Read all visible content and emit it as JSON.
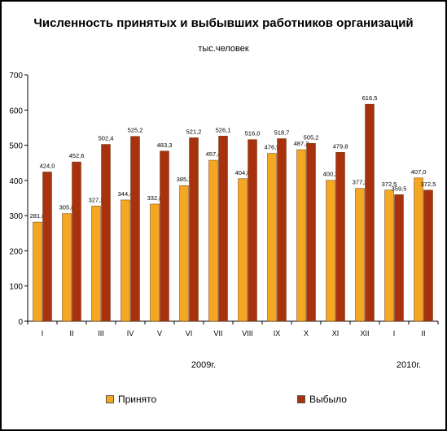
{
  "chart_data": {
    "type": "bar",
    "title": "Численность принятых и выбывших работников организаций",
    "subtitle": "тыс.человек",
    "categories": [
      "I",
      "II",
      "III",
      "IV",
      "V",
      "VI",
      "VII",
      "VIII",
      "IX",
      "X",
      "XI",
      "XII",
      "I",
      "II"
    ],
    "groups": [
      {
        "label": "2009г.",
        "from": 0,
        "to": 11
      },
      {
        "label": "2010г.",
        "from": 12,
        "to": 13
      }
    ],
    "series": [
      {
        "name": "Принято",
        "color": "#f5a623",
        "values": [
          281.6,
          305.8,
          327.2,
          344.4,
          332.8,
          385.3,
          457.4,
          404.8,
          476.9,
          487.3,
          400.3,
          377.2,
          372.5,
          407.0
        ],
        "labels": [
          "281,6",
          "305,8",
          "327,2",
          "344,4",
          "332,8",
          "385,3",
          "457,4",
          "404,8",
          "476,9",
          "487,3",
          "400,3",
          "377,2",
          "372,5",
          "407,0"
        ]
      },
      {
        "name": "Выбыло",
        "color": "#a8320e",
        "values": [
          424.0,
          452.6,
          502.4,
          525.2,
          483.3,
          521.2,
          526.1,
          516.0,
          518.7,
          505.2,
          479.8,
          616.5,
          359.5,
          372.5
        ],
        "labels": [
          "424,0",
          "452,6",
          "502,4",
          "525,2",
          "483,3",
          "521,2",
          "526,1",
          "516,0",
          "518,7",
          "505,2",
          "479,8",
          "616,5",
          "359,5",
          "372,5"
        ]
      }
    ],
    "ylim": [
      0,
      700
    ],
    "yticks": [
      "0",
      "100",
      "200",
      "300",
      "400",
      "500",
      "600",
      "700"
    ],
    "grid": false,
    "legend_position": "bottom"
  }
}
